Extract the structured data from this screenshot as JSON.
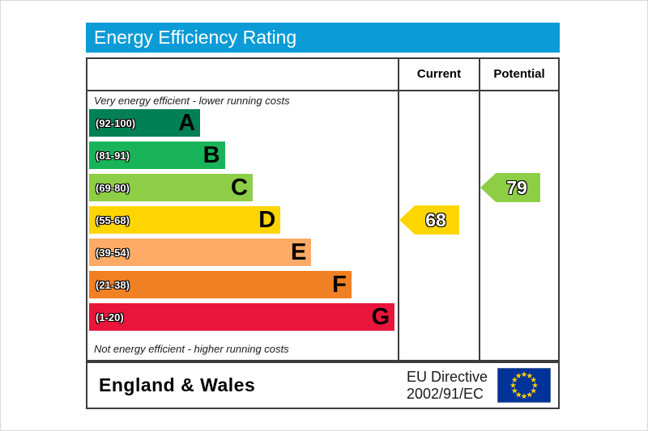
{
  "title": "Energy Efficiency Rating",
  "columns": {
    "current": "Current",
    "potential": "Potential"
  },
  "top_note": "Very energy efficient - lower running costs",
  "bottom_note": "Not energy efficient - higher running costs",
  "bands": [
    {
      "range": "(92-100)",
      "letter": "A",
      "color": "#008054",
      "width_pct": 36
    },
    {
      "range": "(81-91)",
      "letter": "B",
      "color": "#19b459",
      "width_pct": 44
    },
    {
      "range": "(69-80)",
      "letter": "C",
      "color": "#8dce46",
      "width_pct": 53
    },
    {
      "range": "(55-68)",
      "letter": "D",
      "color": "#ffd500",
      "width_pct": 62
    },
    {
      "range": "(39-54)",
      "letter": "E",
      "color": "#fcaa65",
      "width_pct": 72
    },
    {
      "range": "(21-38)",
      "letter": "F",
      "color": "#ef8023",
      "width_pct": 85
    },
    {
      "range": "(1-20)",
      "letter": "G",
      "color": "#e9153b",
      "width_pct": 99
    }
  ],
  "current": {
    "value": "68",
    "color": "#ffd500",
    "band": "D"
  },
  "potential": {
    "value": "79",
    "color": "#8dce46",
    "band": "C"
  },
  "footer": {
    "region": "England & Wales",
    "directive_line1": "EU Directive",
    "directive_line2": "2002/91/EC"
  },
  "colors": {
    "header_bg": "#0b9bd7",
    "border": "#3c3c3c",
    "eu_flag_blue": "#003399",
    "eu_star_yellow": "#ffcc00"
  },
  "chart_data": {
    "type": "bar",
    "title": "Energy Efficiency Rating",
    "categories": [
      "A",
      "B",
      "C",
      "D",
      "E",
      "F",
      "G"
    ],
    "ranges": [
      "92-100",
      "81-91",
      "69-80",
      "55-68",
      "39-54",
      "21-38",
      "1-20"
    ],
    "band_colors": [
      "#008054",
      "#19b459",
      "#8dce46",
      "#ffd500",
      "#fcaa65",
      "#ef8023",
      "#e9153b"
    ],
    "bar_lengths_pct": [
      36,
      44,
      53,
      62,
      72,
      85,
      99
    ],
    "markers": [
      {
        "name": "Current",
        "value": 68,
        "band": "D",
        "color": "#ffd500"
      },
      {
        "name": "Potential",
        "value": 79,
        "band": "C",
        "color": "#8dce46"
      }
    ],
    "annotations": [
      "Very energy efficient - lower running costs",
      "Not energy efficient - higher running costs"
    ],
    "legend_position": "none",
    "footer": "England & Wales — EU Directive 2002/91/EC"
  }
}
